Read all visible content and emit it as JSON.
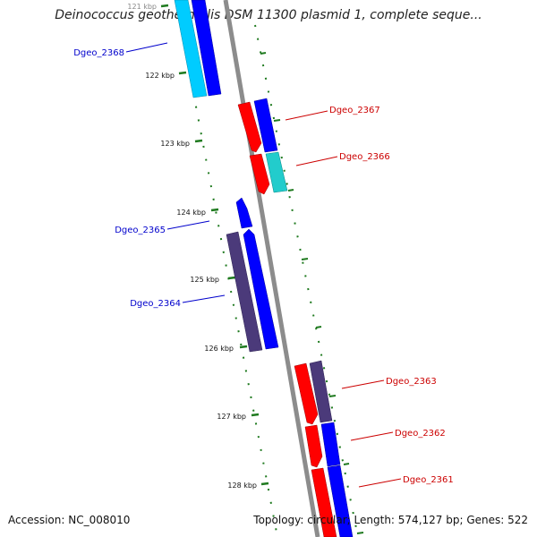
{
  "title": "Deinococcus geothermalis DSM 11300 plasmid 1, complete seque...",
  "footer": {
    "accession": "Accession: NC_008010",
    "summary": "Topology: circular; Length: 574,127 bp; Genes: 522"
  },
  "scale": {
    "unit": "kbp",
    "ticks": [
      "121 kbp",
      "122 kbp",
      "123 kbp",
      "124 kbp",
      "125 kbp",
      "126 kbp",
      "127 kbp",
      "128 kbp"
    ]
  },
  "colors": {
    "backbone": "#8c8c8c",
    "tick": "#1f7a1f",
    "label_forward": "#0000cc",
    "label_reverse": "#cc0000",
    "cds_forward": "#0000ff",
    "cds_reverse": "#ff0000",
    "gene_forward_outer": "#00ccff",
    "gene_reverse_outer": "#00cccc",
    "gene_other_outer": "#4b3a7a"
  },
  "genes": [
    {
      "name": "Dgeo_2368",
      "strand": "forward"
    },
    {
      "name": "Dgeo_2367",
      "strand": "reverse"
    },
    {
      "name": "Dgeo_2366",
      "strand": "reverse"
    },
    {
      "name": "Dgeo_2365",
      "strand": "forward"
    },
    {
      "name": "Dgeo_2364",
      "strand": "forward"
    },
    {
      "name": "Dgeo_2363",
      "strand": "reverse"
    },
    {
      "name": "Dgeo_2362",
      "strand": "reverse"
    },
    {
      "name": "Dgeo_2361",
      "strand": "reverse"
    }
  ]
}
